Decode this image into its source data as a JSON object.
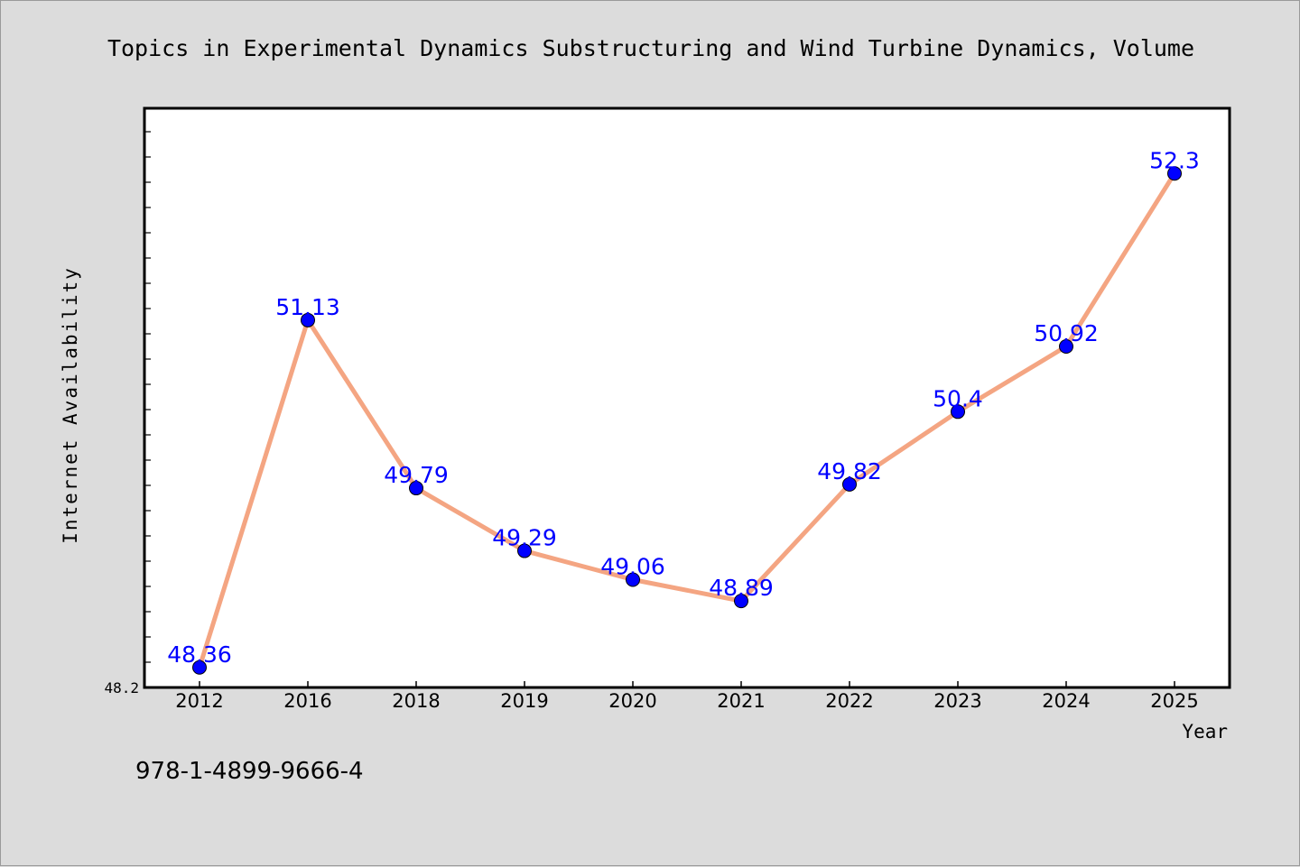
{
  "chart_data": {
    "type": "line",
    "title": "Topics in Experimental Dynamics Substructuring and Wind Turbine Dynamics, Volume",
    "xlabel": "Year",
    "ylabel": "Internet Availability",
    "categories": [
      "2012",
      "2016",
      "2018",
      "2019",
      "2020",
      "2021",
      "2022",
      "2023",
      "2024",
      "2025"
    ],
    "series": [
      {
        "values": [
          48.36,
          51.13,
          49.79,
          49.29,
          49.06,
          48.89,
          49.82,
          50.4,
          50.92,
          52.3
        ],
        "data_labels": [
          "48.36",
          "51.13",
          "49.79",
          "49.29",
          "49.06",
          "48.89",
          "49.82",
          "50.4",
          "50.92",
          "52.3"
        ]
      }
    ],
    "yticks": [
      {
        "value": 48.2,
        "label": "48.2"
      }
    ],
    "ylim": [
      48.2,
      52.82
    ],
    "grid": false,
    "colors": {
      "line": "#f4a582",
      "marker": "#0000ff",
      "data_label": "#0000ff",
      "background": "#dcdcdc",
      "plot_area": "#ffffff"
    }
  },
  "footer": {
    "isbn": "978-1-4899-9666-4"
  }
}
